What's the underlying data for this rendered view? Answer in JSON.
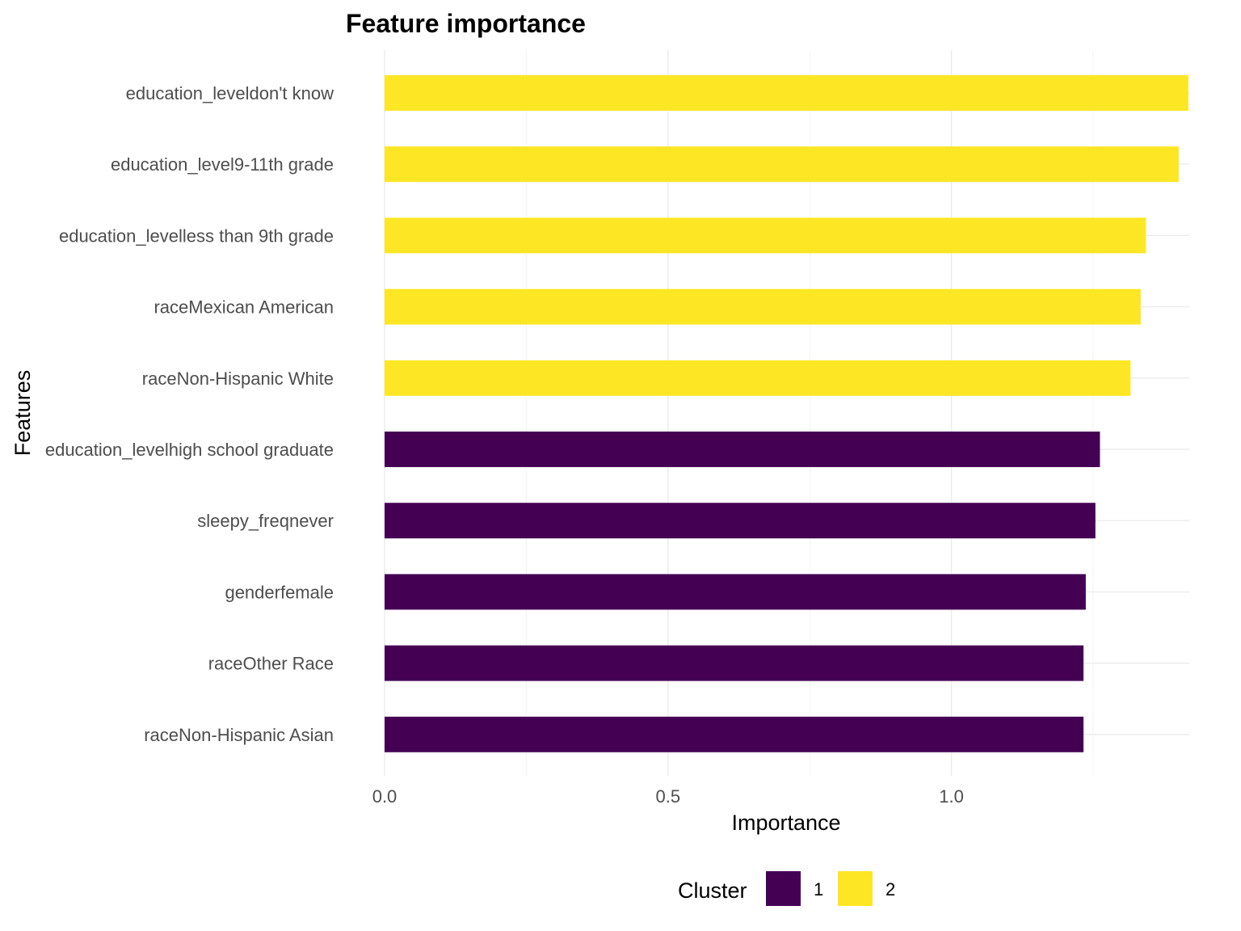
{
  "chart_data": {
    "type": "bar",
    "orientation": "horizontal",
    "title": "Feature importance",
    "xlabel": "Importance",
    "ylabel": "Features",
    "xlim": [
      0,
      1.42
    ],
    "xticks": [
      0.0,
      0.5,
      1.0
    ],
    "xtick_labels": [
      "0.0",
      "0.5",
      "1.0"
    ],
    "grid": true,
    "legend": {
      "title": "Cluster",
      "position": "bottom",
      "entries": [
        {
          "label": "1",
          "color": "#440154"
        },
        {
          "label": "2",
          "color": "#FDE725"
        }
      ]
    },
    "categories": [
      "education_leveldon't know",
      "education_level9-11th grade",
      "education_levelless than 9th grade",
      "raceMexican American",
      "raceNon-Hispanic White",
      "education_levelhigh school graduate",
      "sleepy_freqnever",
      "genderfemale",
      "raceOther Race",
      "raceNon-Hispanic Asian"
    ],
    "values": [
      1.418,
      1.401,
      1.343,
      1.334,
      1.316,
      1.262,
      1.254,
      1.237,
      1.233,
      1.233
    ],
    "clusters": [
      "2",
      "2",
      "2",
      "2",
      "2",
      "1",
      "1",
      "1",
      "1",
      "1"
    ]
  }
}
